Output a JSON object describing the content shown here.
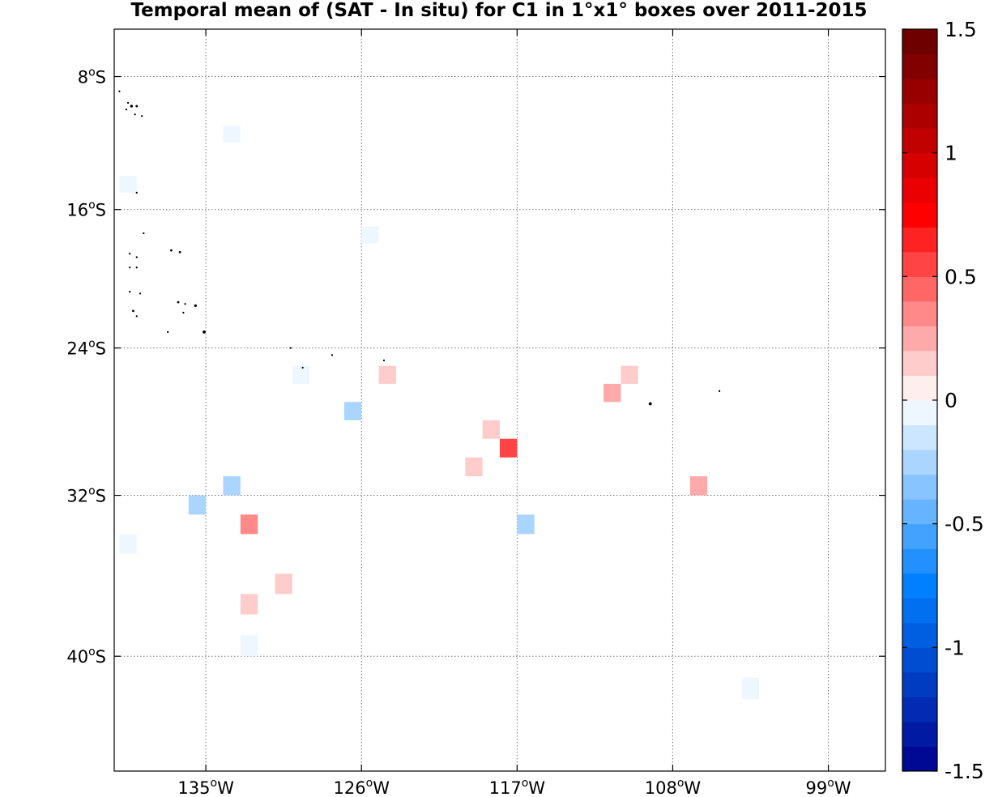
{
  "chart_data": {
    "type": "heatmap",
    "title": "Temporal mean of (SAT - In situ) for C1 in 1°x1° boxes over 2011-2015",
    "xlabel": "",
    "ylabel": "",
    "projection": "mercator",
    "xlim": [
      -140.3,
      -95.7
    ],
    "ylim": [
      -45.2,
      -5.1
    ],
    "grid": true,
    "x_ticks": [
      {
        "value": -135,
        "label": "135",
        "deg": "o",
        "hemi": "W"
      },
      {
        "value": -126,
        "label": "126",
        "deg": "o",
        "hemi": "W"
      },
      {
        "value": -117,
        "label": "117",
        "deg": "o",
        "hemi": "W"
      },
      {
        "value": -108,
        "label": "108",
        "deg": "o",
        "hemi": "W"
      },
      {
        "value": -99,
        "label": "99",
        "deg": "o",
        "hemi": "W"
      }
    ],
    "y_ticks": [
      {
        "value": -8,
        "label": "8",
        "deg": "o",
        "hemi": "S"
      },
      {
        "value": -16,
        "label": "16",
        "deg": "o",
        "hemi": "S"
      },
      {
        "value": -24,
        "label": "24",
        "deg": "o",
        "hemi": "S"
      },
      {
        "value": -32,
        "label": "32",
        "deg": "o",
        "hemi": "S"
      },
      {
        "value": -40,
        "label": "40",
        "deg": "o",
        "hemi": "S"
      }
    ],
    "colorbar": {
      "range": [
        -1.5,
        1.5
      ],
      "levels": 30,
      "position": "right",
      "ticks": [
        {
          "value": 1.5,
          "label": "1.5"
        },
        {
          "value": 1,
          "label": "1"
        },
        {
          "value": 0.5,
          "label": "0.5"
        },
        {
          "value": 0,
          "label": "0"
        },
        {
          "value": -0.5,
          "label": "-0.5"
        },
        {
          "value": -1,
          "label": "-1"
        },
        {
          "value": -1.5,
          "label": "-1.5"
        }
      ]
    },
    "cells": [
      {
        "lon": -133.5,
        "lat": -11.5,
        "value": -0.05
      },
      {
        "lon": -139.5,
        "lat": -14.5,
        "value": -0.05
      },
      {
        "lon": -125.5,
        "lat": -17.5,
        "value": -0.05
      },
      {
        "lon": -129.5,
        "lat": -25.5,
        "value": -0.05
      },
      {
        "lon": -124.5,
        "lat": -25.5,
        "value": 0.15
      },
      {
        "lon": -126.5,
        "lat": -27.5,
        "value": -0.25
      },
      {
        "lon": -110.5,
        "lat": -25.5,
        "value": 0.15
      },
      {
        "lon": -111.5,
        "lat": -26.5,
        "value": 0.25
      },
      {
        "lon": -118.5,
        "lat": -28.5,
        "value": 0.15
      },
      {
        "lon": -117.5,
        "lat": -29.5,
        "value": 0.55
      },
      {
        "lon": -119.5,
        "lat": -30.5,
        "value": 0.15
      },
      {
        "lon": -133.5,
        "lat": -31.5,
        "value": -0.25
      },
      {
        "lon": -135.5,
        "lat": -32.5,
        "value": -0.25
      },
      {
        "lon": -132.5,
        "lat": -33.5,
        "value": 0.35
      },
      {
        "lon": -116.5,
        "lat": -33.5,
        "value": -0.25
      },
      {
        "lon": -106.5,
        "lat": -31.5,
        "value": 0.25
      },
      {
        "lon": -139.5,
        "lat": -34.5,
        "value": -0.05
      },
      {
        "lon": -130.5,
        "lat": -36.5,
        "value": 0.15
      },
      {
        "lon": -132.5,
        "lat": -37.5,
        "value": 0.15
      },
      {
        "lon": -132.5,
        "lat": -39.5,
        "value": -0.05
      },
      {
        "lon": -103.5,
        "lat": -41.5,
        "value": -0.05
      }
    ],
    "land": [
      {
        "lon": -140.0,
        "lat": -8.9,
        "size": 1.5
      },
      {
        "lon": -139.5,
        "lat": -9.6,
        "size": 1.5
      },
      {
        "lon": -139.3,
        "lat": -9.8,
        "size": 2.5
      },
      {
        "lon": -139.0,
        "lat": -9.8,
        "size": 2
      },
      {
        "lon": -139.6,
        "lat": -10.0,
        "size": 1.5
      },
      {
        "lon": -139.1,
        "lat": -10.3,
        "size": 1.5
      },
      {
        "lon": -138.7,
        "lat": -10.4,
        "size": 1.5
      },
      {
        "lon": -139.0,
        "lat": -15.0,
        "size": 1.5
      },
      {
        "lon": -138.6,
        "lat": -17.4,
        "size": 1.5
      },
      {
        "lon": -139.4,
        "lat": -18.6,
        "size": 1.5
      },
      {
        "lon": -139.0,
        "lat": -18.8,
        "size": 1.5
      },
      {
        "lon": -139.4,
        "lat": -19.4,
        "size": 1.5
      },
      {
        "lon": -139.0,
        "lat": -19.4,
        "size": 1.5
      },
      {
        "lon": -137.0,
        "lat": -18.4,
        "size": 2
      },
      {
        "lon": -136.5,
        "lat": -18.5,
        "size": 2
      },
      {
        "lon": -139.4,
        "lat": -20.8,
        "size": 1.5
      },
      {
        "lon": -138.8,
        "lat": -20.9,
        "size": 1.5
      },
      {
        "lon": -136.6,
        "lat": -21.4,
        "size": 2
      },
      {
        "lon": -136.2,
        "lat": -21.5,
        "size": 1.5
      },
      {
        "lon": -135.6,
        "lat": -21.6,
        "size": 2.5
      },
      {
        "lon": -139.2,
        "lat": -21.9,
        "size": 2
      },
      {
        "lon": -139.0,
        "lat": -22.2,
        "size": 1.5
      },
      {
        "lon": -136.3,
        "lat": -22.0,
        "size": 1.5
      },
      {
        "lon": -135.1,
        "lat": -23.1,
        "size": 3
      },
      {
        "lon": -137.2,
        "lat": -23.1,
        "size": 1.5
      },
      {
        "lon": -130.1,
        "lat": -24.0,
        "size": 1.5
      },
      {
        "lon": -127.7,
        "lat": -24.4,
        "size": 1.5
      },
      {
        "lon": -124.7,
        "lat": -24.7,
        "size": 1.5
      },
      {
        "lon": -129.4,
        "lat": -25.1,
        "size": 1.5
      },
      {
        "lon": -109.3,
        "lat": -27.1,
        "size": 3
      },
      {
        "lon": -105.3,
        "lat": -26.4,
        "size": 1.5
      }
    ]
  }
}
